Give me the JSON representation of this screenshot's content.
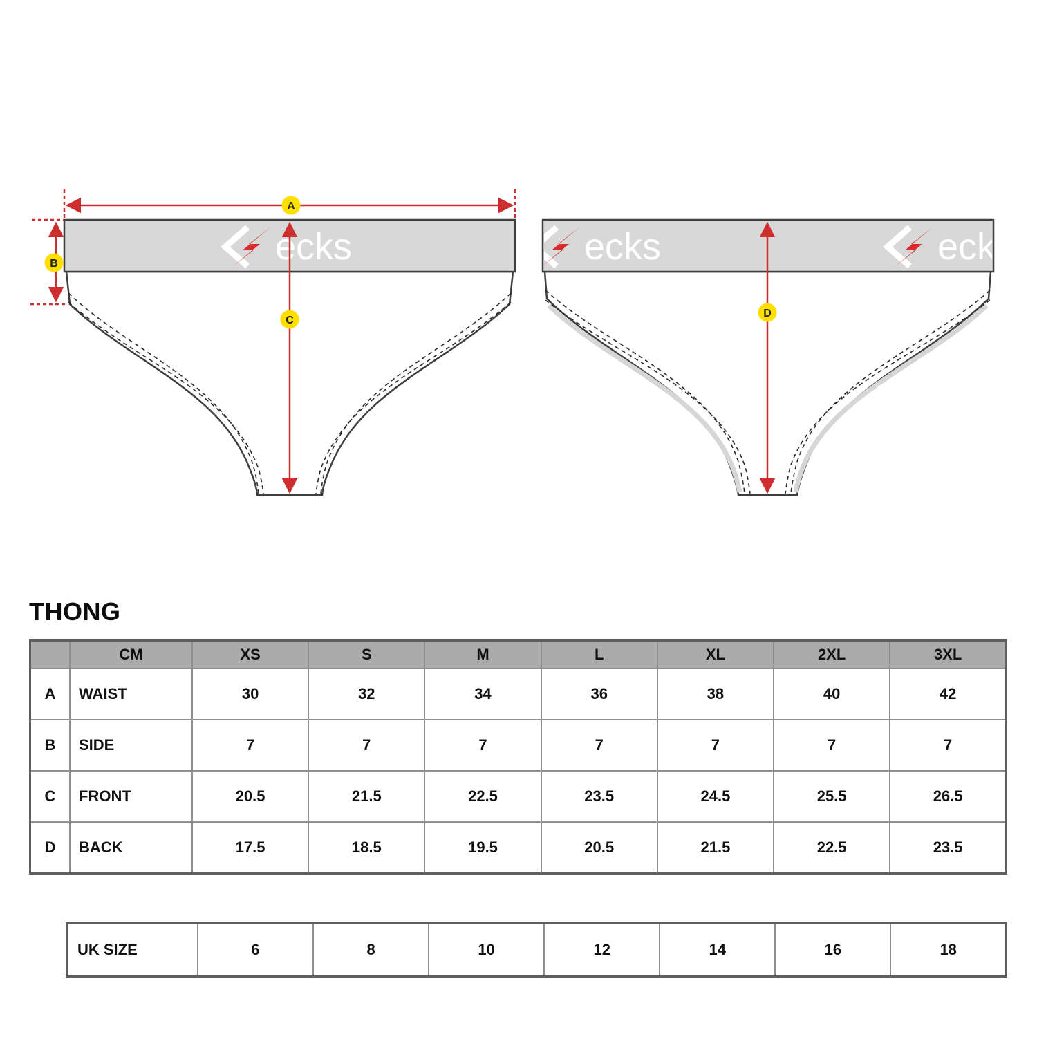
{
  "brand": {
    "name": "Kecks",
    "logo_text": "ecks"
  },
  "title": "THONG",
  "measurements": {
    "a": "A",
    "b": "B",
    "c": "C",
    "d": "D"
  },
  "size_table": {
    "unit_label": "CM",
    "columns": [
      "XS",
      "S",
      "M",
      "L",
      "XL",
      "2XL",
      "3XL"
    ],
    "rows": [
      {
        "key": "A",
        "label": "WAIST",
        "values": [
          "30",
          "32",
          "34",
          "36",
          "38",
          "40",
          "42"
        ]
      },
      {
        "key": "B",
        "label": "SIDE",
        "values": [
          "7",
          "7",
          "7",
          "7",
          "7",
          "7",
          "7"
        ]
      },
      {
        "key": "C",
        "label": "FRONT",
        "values": [
          "20.5",
          "21.5",
          "22.5",
          "23.5",
          "24.5",
          "25.5",
          "26.5"
        ]
      },
      {
        "key": "D",
        "label": "BACK",
        "values": [
          "17.5",
          "18.5",
          "19.5",
          "20.5",
          "21.5",
          "22.5",
          "23.5"
        ]
      }
    ]
  },
  "uk_sizes": {
    "label": "UK SIZE",
    "values": [
      "6",
      "8",
      "10",
      "12",
      "14",
      "16",
      "18"
    ]
  },
  "colors": {
    "arrow_red": "#cf2e2e",
    "badge_yellow": "#ffdf00",
    "waistband_gray": "#d8d8d8",
    "header_gray": "#ababab",
    "logo_red": "#d92b2b",
    "outline_dark": "#3f3f3f"
  }
}
